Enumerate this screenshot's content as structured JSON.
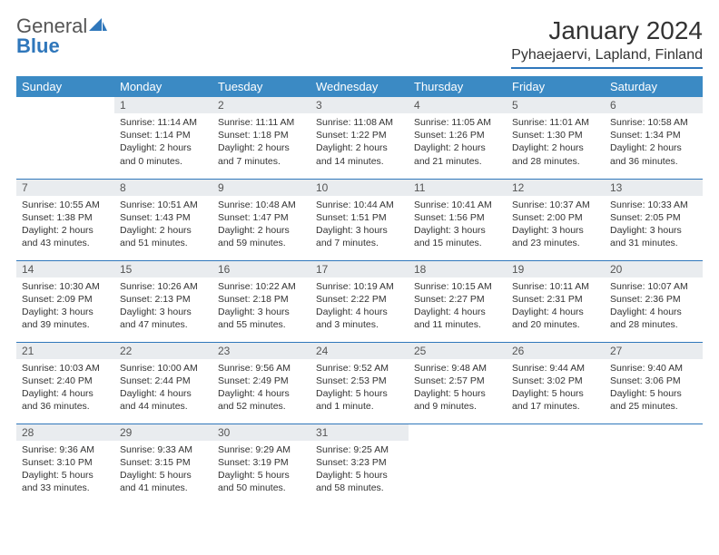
{
  "brand": {
    "line1": "General",
    "line2": "Blue"
  },
  "title": "January 2024",
  "location": "Pyhaejaervi, Lapland, Finland",
  "colors": {
    "header_bg": "#3b8ac4",
    "header_text": "#ffffff",
    "daynum_bg": "#e9ecef",
    "rule": "#2f77bb",
    "body_text": "#333333"
  },
  "days_of_week": [
    "Sunday",
    "Monday",
    "Tuesday",
    "Wednesday",
    "Thursday",
    "Friday",
    "Saturday"
  ],
  "weeks": [
    [
      null,
      {
        "n": "1",
        "sr": "Sunrise: 11:14 AM",
        "ss": "Sunset: 1:14 PM",
        "d1": "Daylight: 2 hours",
        "d2": "and 0 minutes."
      },
      {
        "n": "2",
        "sr": "Sunrise: 11:11 AM",
        "ss": "Sunset: 1:18 PM",
        "d1": "Daylight: 2 hours",
        "d2": "and 7 minutes."
      },
      {
        "n": "3",
        "sr": "Sunrise: 11:08 AM",
        "ss": "Sunset: 1:22 PM",
        "d1": "Daylight: 2 hours",
        "d2": "and 14 minutes."
      },
      {
        "n": "4",
        "sr": "Sunrise: 11:05 AM",
        "ss": "Sunset: 1:26 PM",
        "d1": "Daylight: 2 hours",
        "d2": "and 21 minutes."
      },
      {
        "n": "5",
        "sr": "Sunrise: 11:01 AM",
        "ss": "Sunset: 1:30 PM",
        "d1": "Daylight: 2 hours",
        "d2": "and 28 minutes."
      },
      {
        "n": "6",
        "sr": "Sunrise: 10:58 AM",
        "ss": "Sunset: 1:34 PM",
        "d1": "Daylight: 2 hours",
        "d2": "and 36 minutes."
      }
    ],
    [
      {
        "n": "7",
        "sr": "Sunrise: 10:55 AM",
        "ss": "Sunset: 1:38 PM",
        "d1": "Daylight: 2 hours",
        "d2": "and 43 minutes."
      },
      {
        "n": "8",
        "sr": "Sunrise: 10:51 AM",
        "ss": "Sunset: 1:43 PM",
        "d1": "Daylight: 2 hours",
        "d2": "and 51 minutes."
      },
      {
        "n": "9",
        "sr": "Sunrise: 10:48 AM",
        "ss": "Sunset: 1:47 PM",
        "d1": "Daylight: 2 hours",
        "d2": "and 59 minutes."
      },
      {
        "n": "10",
        "sr": "Sunrise: 10:44 AM",
        "ss": "Sunset: 1:51 PM",
        "d1": "Daylight: 3 hours",
        "d2": "and 7 minutes."
      },
      {
        "n": "11",
        "sr": "Sunrise: 10:41 AM",
        "ss": "Sunset: 1:56 PM",
        "d1": "Daylight: 3 hours",
        "d2": "and 15 minutes."
      },
      {
        "n": "12",
        "sr": "Sunrise: 10:37 AM",
        "ss": "Sunset: 2:00 PM",
        "d1": "Daylight: 3 hours",
        "d2": "and 23 minutes."
      },
      {
        "n": "13",
        "sr": "Sunrise: 10:33 AM",
        "ss": "Sunset: 2:05 PM",
        "d1": "Daylight: 3 hours",
        "d2": "and 31 minutes."
      }
    ],
    [
      {
        "n": "14",
        "sr": "Sunrise: 10:30 AM",
        "ss": "Sunset: 2:09 PM",
        "d1": "Daylight: 3 hours",
        "d2": "and 39 minutes."
      },
      {
        "n": "15",
        "sr": "Sunrise: 10:26 AM",
        "ss": "Sunset: 2:13 PM",
        "d1": "Daylight: 3 hours",
        "d2": "and 47 minutes."
      },
      {
        "n": "16",
        "sr": "Sunrise: 10:22 AM",
        "ss": "Sunset: 2:18 PM",
        "d1": "Daylight: 3 hours",
        "d2": "and 55 minutes."
      },
      {
        "n": "17",
        "sr": "Sunrise: 10:19 AM",
        "ss": "Sunset: 2:22 PM",
        "d1": "Daylight: 4 hours",
        "d2": "and 3 minutes."
      },
      {
        "n": "18",
        "sr": "Sunrise: 10:15 AM",
        "ss": "Sunset: 2:27 PM",
        "d1": "Daylight: 4 hours",
        "d2": "and 11 minutes."
      },
      {
        "n": "19",
        "sr": "Sunrise: 10:11 AM",
        "ss": "Sunset: 2:31 PM",
        "d1": "Daylight: 4 hours",
        "d2": "and 20 minutes."
      },
      {
        "n": "20",
        "sr": "Sunrise: 10:07 AM",
        "ss": "Sunset: 2:36 PM",
        "d1": "Daylight: 4 hours",
        "d2": "and 28 minutes."
      }
    ],
    [
      {
        "n": "21",
        "sr": "Sunrise: 10:03 AM",
        "ss": "Sunset: 2:40 PM",
        "d1": "Daylight: 4 hours",
        "d2": "and 36 minutes."
      },
      {
        "n": "22",
        "sr": "Sunrise: 10:00 AM",
        "ss": "Sunset: 2:44 PM",
        "d1": "Daylight: 4 hours",
        "d2": "and 44 minutes."
      },
      {
        "n": "23",
        "sr": "Sunrise: 9:56 AM",
        "ss": "Sunset: 2:49 PM",
        "d1": "Daylight: 4 hours",
        "d2": "and 52 minutes."
      },
      {
        "n": "24",
        "sr": "Sunrise: 9:52 AM",
        "ss": "Sunset: 2:53 PM",
        "d1": "Daylight: 5 hours",
        "d2": "and 1 minute."
      },
      {
        "n": "25",
        "sr": "Sunrise: 9:48 AM",
        "ss": "Sunset: 2:57 PM",
        "d1": "Daylight: 5 hours",
        "d2": "and 9 minutes."
      },
      {
        "n": "26",
        "sr": "Sunrise: 9:44 AM",
        "ss": "Sunset: 3:02 PM",
        "d1": "Daylight: 5 hours",
        "d2": "and 17 minutes."
      },
      {
        "n": "27",
        "sr": "Sunrise: 9:40 AM",
        "ss": "Sunset: 3:06 PM",
        "d1": "Daylight: 5 hours",
        "d2": "and 25 minutes."
      }
    ],
    [
      {
        "n": "28",
        "sr": "Sunrise: 9:36 AM",
        "ss": "Sunset: 3:10 PM",
        "d1": "Daylight: 5 hours",
        "d2": "and 33 minutes."
      },
      {
        "n": "29",
        "sr": "Sunrise: 9:33 AM",
        "ss": "Sunset: 3:15 PM",
        "d1": "Daylight: 5 hours",
        "d2": "and 41 minutes."
      },
      {
        "n": "30",
        "sr": "Sunrise: 9:29 AM",
        "ss": "Sunset: 3:19 PM",
        "d1": "Daylight: 5 hours",
        "d2": "and 50 minutes."
      },
      {
        "n": "31",
        "sr": "Sunrise: 9:25 AM",
        "ss": "Sunset: 3:23 PM",
        "d1": "Daylight: 5 hours",
        "d2": "and 58 minutes."
      },
      null,
      null,
      null
    ]
  ]
}
